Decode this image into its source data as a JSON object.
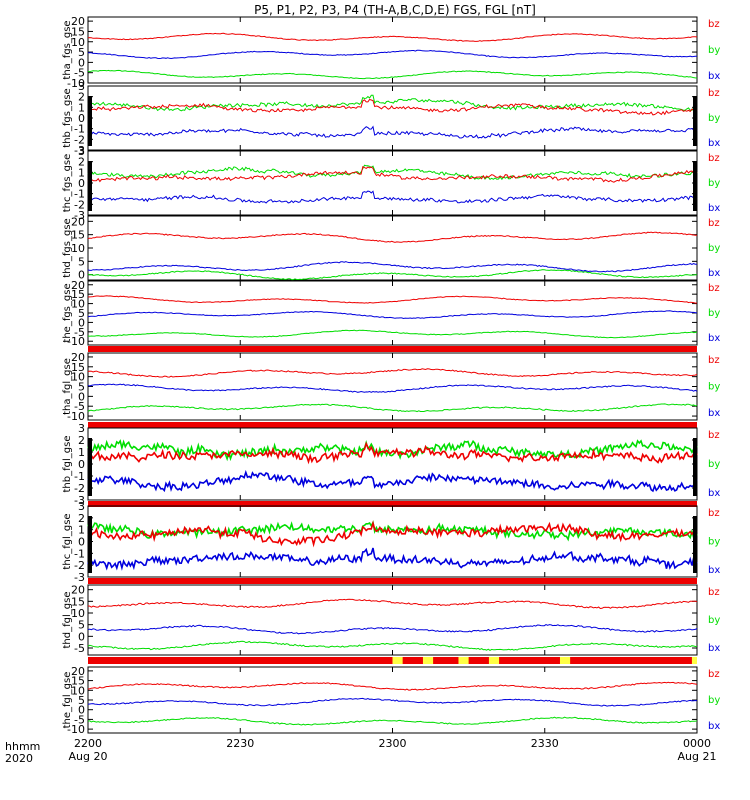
{
  "chart_data": {
    "type": "line",
    "title": "P5, P1, P2, P3, P4 (TH-A,B,C,D,E) FGS, FGL [nT]",
    "x_start_label": "hhmm",
    "year_label": "2020",
    "x_ticks": [
      {
        "t": 0,
        "label": "2200",
        "sub": "Aug 20"
      },
      {
        "t": 30,
        "label": "2230",
        "sub": ""
      },
      {
        "t": 60,
        "label": "2300",
        "sub": ""
      },
      {
        "t": 90,
        "label": "2330",
        "sub": ""
      },
      {
        "t": 120,
        "label": "0000",
        "sub": "Aug 21"
      }
    ],
    "x_range_minutes": [
      0,
      120
    ],
    "colors": {
      "bx": "#0000dd",
      "by": "#00dd00",
      "bz": "#ee0000",
      "bar_red": "#ee0000",
      "bar_yellow": "#ffff44",
      "mask": "#000000"
    },
    "legend": [
      "bz",
      "by",
      "bx"
    ],
    "panels": [
      {
        "ylabel": "tha_fgs_gse",
        "ylim": [
          -10,
          22
        ],
        "yticks": [
          -10,
          -5,
          0,
          5,
          10,
          15,
          20
        ],
        "bz": 12,
        "by": -6,
        "bx": 4,
        "amp": 2.0,
        "noise": 0.2,
        "kind": "smooth",
        "statusbar": "none"
      },
      {
        "ylabel": "thb_fgs_gse",
        "ylim": [
          -3,
          3
        ],
        "yticks": [
          -3,
          -2,
          -1,
          0,
          1,
          2,
          3
        ],
        "bz": 0.9,
        "by": 1.2,
        "bx": -1.4,
        "amp": 0.35,
        "noise": 0.15,
        "kind": "noisy",
        "statusbar": "none"
      },
      {
        "ylabel": "thc_fgs_gse",
        "ylim": [
          -3,
          3
        ],
        "yticks": [
          -3,
          -2,
          -1,
          0,
          1,
          2,
          3
        ],
        "bz": 0.6,
        "by": 0.9,
        "bx": -1.5,
        "amp": 0.35,
        "noise": 0.15,
        "kind": "noisy",
        "statusbar": "none"
      },
      {
        "ylabel": "thd_fgs_gse",
        "ylim": [
          -2,
          22
        ],
        "yticks": [
          0,
          5,
          10,
          15,
          20
        ],
        "bz": 14,
        "by": 0,
        "bx": 3,
        "amp": 1.8,
        "noise": 0.2,
        "kind": "smooth",
        "statusbar": "none"
      },
      {
        "ylabel": "the_fgs_gse",
        "ylim": [
          -12,
          22
        ],
        "yticks": [
          -10,
          -5,
          0,
          5,
          10,
          15,
          20
        ],
        "bz": 12,
        "by": -6,
        "bx": 4,
        "amp": 2.0,
        "noise": 0.2,
        "kind": "smooth",
        "statusbar": "red"
      },
      {
        "ylabel": "tha_fgl_gse",
        "ylim": [
          -12,
          22
        ],
        "yticks": [
          -10,
          -5,
          0,
          5,
          10,
          15,
          20
        ],
        "bz": 12,
        "by": -6,
        "bx": 4,
        "amp": 2.0,
        "noise": 0.3,
        "kind": "smooth",
        "statusbar": "red"
      },
      {
        "ylabel": "thb_fgl_gse",
        "ylim": [
          -3,
          3
        ],
        "yticks": [
          -3,
          -2,
          -1,
          0,
          1,
          2,
          3
        ],
        "bz": 0.8,
        "by": 1.2,
        "bx": -1.4,
        "amp": 0.35,
        "noise": 0.3,
        "kind": "noisy",
        "statusbar": "red"
      },
      {
        "ylabel": "thc_fgl_gse",
        "ylim": [
          -3,
          3
        ],
        "yticks": [
          -3,
          -2,
          -1,
          0,
          1,
          2,
          3
        ],
        "bz": 0.6,
        "by": 1.0,
        "bx": -1.6,
        "amp": 0.35,
        "noise": 0.3,
        "kind": "noisy",
        "statusbar": "red"
      },
      {
        "ylabel": "thd_fgl_gse",
        "ylim": [
          -8,
          22
        ],
        "yticks": [
          -5,
          0,
          5,
          10,
          15,
          20
        ],
        "bz": 14,
        "by": -4,
        "bx": 3,
        "amp": 1.8,
        "noise": 0.3,
        "kind": "smooth",
        "statusbar": "red_yellow"
      },
      {
        "ylabel": "the_fgl_gse",
        "ylim": [
          -12,
          22
        ],
        "yticks": [
          -10,
          -5,
          0,
          5,
          10,
          15,
          20
        ],
        "bz": 12,
        "by": -6,
        "bx": 4,
        "amp": 2.0,
        "noise": 0.3,
        "kind": "smooth",
        "statusbar": "none"
      }
    ],
    "yellow_segments_minutes": [
      [
        60,
        62
      ],
      [
        66,
        68
      ],
      [
        73,
        75
      ],
      [
        79,
        81
      ],
      [
        93,
        95
      ],
      [
        119,
        120
      ]
    ]
  }
}
